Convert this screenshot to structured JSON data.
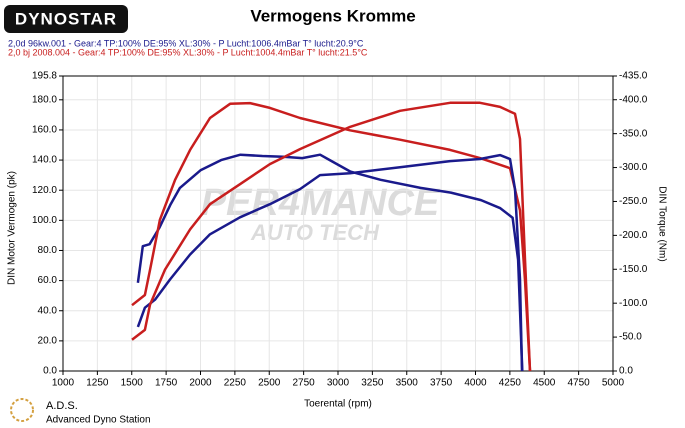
{
  "logo": "DYNOSTAR",
  "footer": {
    "brand": "A.D.S.",
    "subtitle": "Advanced Dyno Station"
  },
  "watermark": [
    "PER4MANCE",
    "AUTO TECH"
  ],
  "chart_data": {
    "type": "line",
    "title": "Vermogens Kromme",
    "legend": [
      {
        "name": "2,0d 96kw.001 - Gear:4 TP:100% DE:95% XL:30%   - P Lucht:1006.4mBar T° lucht:20.9°C",
        "color": "#1a1a8c"
      },
      {
        "name": "2,0 bj 2008.004 - Gear:4 TP:100% DE:95% XL:30%    - P Lucht:1004.4mBar T° lucht:21.5°C",
        "color": "#c81e1e"
      }
    ],
    "x_label": "Toerental (rpm)",
    "y_label": "DIN Motor Vermogen (pk)",
    "y2_label": "DIN Torque (Nm)",
    "xlim": [
      1000,
      5000
    ],
    "xticks": [
      1000,
      1250,
      1500,
      1750,
      2000,
      2250,
      2500,
      2750,
      3000,
      3250,
      3500,
      3750,
      4000,
      4250,
      4500,
      4750,
      5000
    ],
    "ylim": [
      0,
      195.8
    ],
    "yticks": [
      {
        "value": 0,
        "label": "0.0"
      },
      {
        "value": 20,
        "label": "20.0"
      },
      {
        "value": 40,
        "label": "40.0"
      },
      {
        "value": 60,
        "label": "60.0"
      },
      {
        "value": 80,
        "label": "80.0"
      },
      {
        "value": 100,
        "label": "100.0"
      },
      {
        "value": 120,
        "label": "120.0"
      },
      {
        "value": 140,
        "label": "140.0"
      },
      {
        "value": 160,
        "label": "160.0"
      },
      {
        "value": 180,
        "label": "180.0"
      },
      195.8
    ],
    "y2lim": [
      0,
      -435
    ],
    "y2ticks": [
      {
        "value": 0,
        "label": "0.0"
      },
      {
        "value": -50,
        "label": "-50.0"
      },
      {
        "value": -100,
        "label": "-100.0"
      },
      {
        "value": -150,
        "label": "-150.0"
      },
      {
        "value": -200,
        "label": "-200.0"
      },
      {
        "value": -250,
        "label": "-250.0"
      },
      {
        "value": -300,
        "label": "-300.0"
      },
      {
        "value": -350,
        "label": "-350.0"
      },
      {
        "value": -400,
        "label": "-400.0"
      },
      {
        "value": -435,
        "label": "-435.0"
      }
    ],
    "grid": true,
    "series": [
      {
        "color": "#1a1a8c",
        "axis": "y2",
        "x": [
          1545,
          1580,
          1630,
          1700,
          1780,
          1850,
          2000,
          2150,
          2290,
          2450,
          2600,
          2740,
          2870,
          2940,
          3090,
          3310,
          3600,
          3820,
          4040,
          4180,
          4270,
          4310,
          4340
        ],
        "values": [
          -130,
          -184,
          -187,
          -211,
          -245,
          -270,
          -296,
          -311,
          -319,
          -317,
          -316,
          -314,
          -319,
          -311,
          -294,
          -282,
          -270,
          -263,
          -252,
          -240,
          -226,
          -164,
          0
        ]
      },
      {
        "color": "#c81e1e",
        "axis": "y2",
        "x": [
          1502,
          1596,
          1633,
          1705,
          1815,
          1924,
          2069,
          2215,
          2360,
          2505,
          2724,
          3087,
          3451,
          3815,
          4033,
          4251,
          4324,
          4360,
          4396
        ],
        "values": [
          -97,
          -112,
          -149,
          -223,
          -282,
          -326,
          -373,
          -394,
          -395,
          -388,
          -373,
          -355,
          -341,
          -326,
          -314,
          -299,
          -237,
          -134,
          0
        ]
      },
      {
        "color": "#1a1a8c",
        "axis": "y",
        "x": [
          1545,
          1596,
          1669,
          1778,
          1924,
          2069,
          2287,
          2505,
          2724,
          2869,
          3087,
          3451,
          3815,
          4033,
          4178,
          4251,
          4287,
          4324,
          4338
        ],
        "values": [
          29.3,
          42,
          47.3,
          60.7,
          77.3,
          90.7,
          102,
          110.7,
          120.7,
          130,
          131.3,
          135.3,
          139.3,
          140.7,
          143.3,
          140.7,
          120.7,
          60.7,
          0
        ]
      },
      {
        "color": "#c81e1e",
        "axis": "y",
        "x": [
          1502,
          1596,
          1633,
          1742,
          1924,
          2069,
          2287,
          2505,
          2724,
          3087,
          3451,
          3815,
          4033,
          4178,
          4287,
          4324,
          4360,
          4396
        ],
        "values": [
          20.7,
          27.3,
          44,
          67.3,
          94,
          110.7,
          124,
          137.3,
          147.3,
          162,
          172.7,
          178,
          178,
          175.3,
          170.7,
          154,
          74,
          0
        ]
      }
    ]
  }
}
